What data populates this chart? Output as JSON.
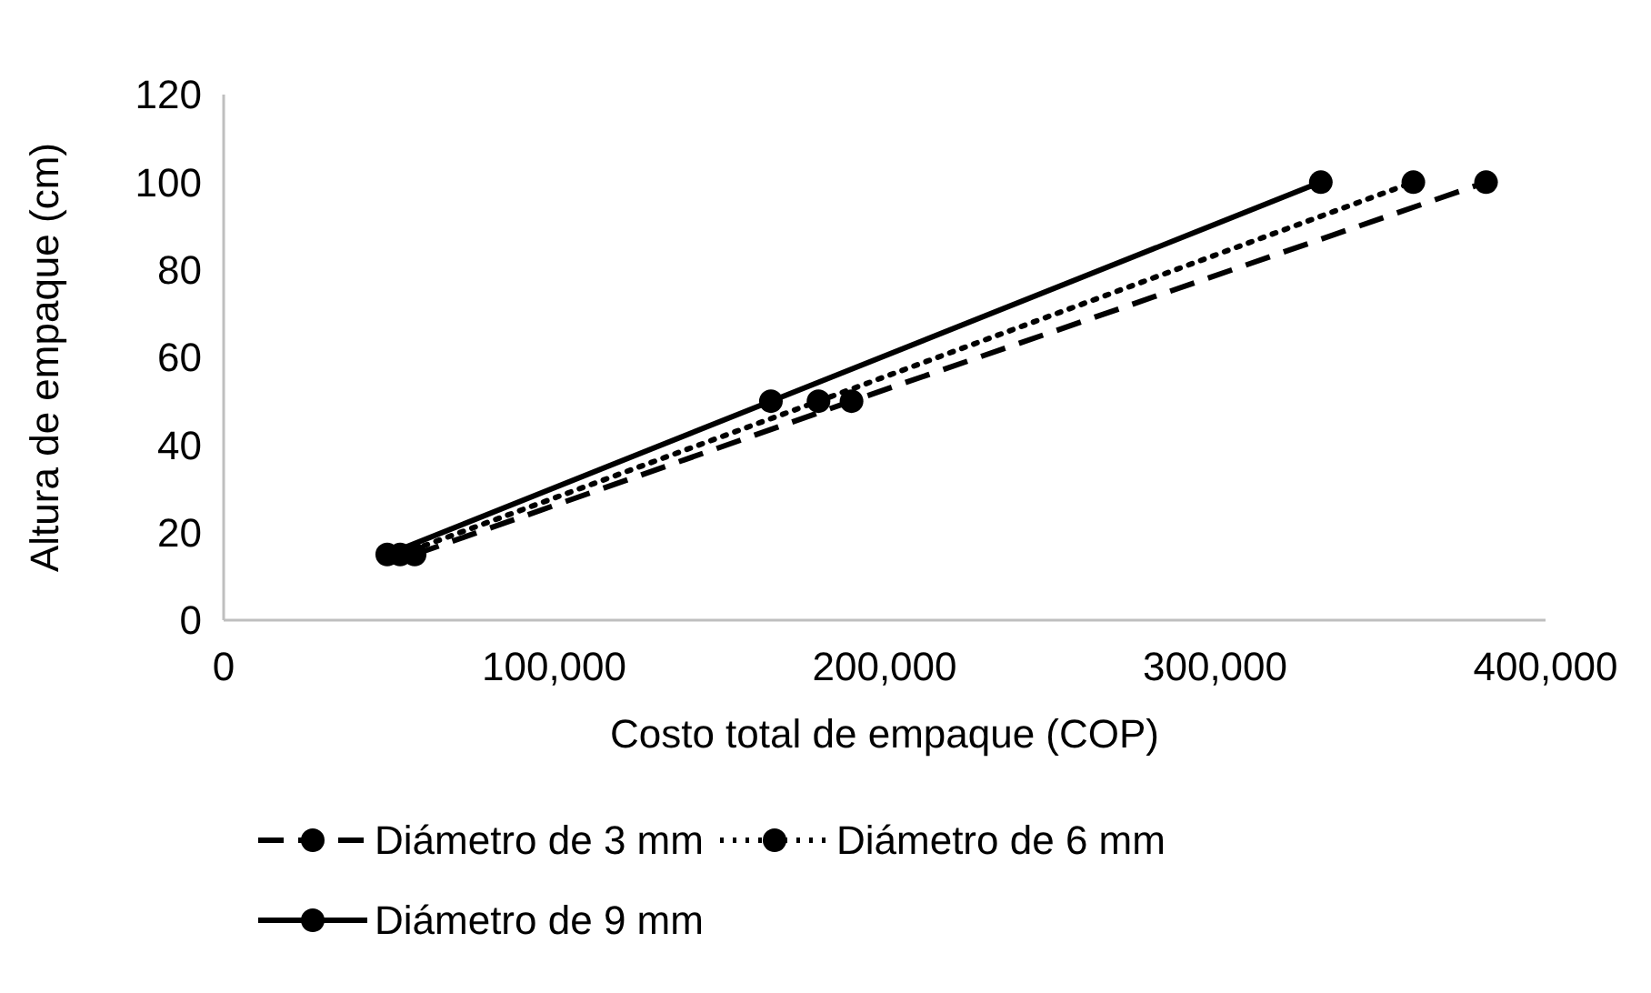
{
  "chart_data": {
    "type": "line",
    "xlabel": "Costo total de empaque (COP)",
    "ylabel": "Altura de empaque (cm)",
    "xlim": [
      0,
      400000
    ],
    "xticks": [
      {
        "value": 0,
        "label": "0"
      },
      {
        "value": 100000,
        "label": "100,000"
      },
      {
        "value": 200000,
        "label": "200,000"
      },
      {
        "value": 300000,
        "label": "300,000"
      },
      {
        "value": 400000,
        "label": "400,000"
      }
    ],
    "ylim": [
      0,
      120
    ],
    "yticks": [
      0,
      20,
      40,
      60,
      80,
      100,
      120
    ],
    "grid": false,
    "legend": "bottom",
    "marker": "circle",
    "series": [
      {
        "name": "Diámetro de 3 mm",
        "color": "#000000",
        "line_style": "dashed",
        "x": [
          57800,
          190000,
          382000
        ],
        "values": [
          15,
          50,
          100
        ]
      },
      {
        "name": "Diámetro de 6 mm",
        "color": "#000000",
        "line_style": "dotted",
        "x": [
          53400,
          180000,
          360000
        ],
        "values": [
          15,
          50,
          100
        ]
      },
      {
        "name": "Diámetro de 9 mm",
        "color": "#000000",
        "line_style": "solid",
        "x": [
          49500,
          165600,
          332000
        ],
        "values": [
          15,
          50,
          100
        ]
      }
    ]
  }
}
